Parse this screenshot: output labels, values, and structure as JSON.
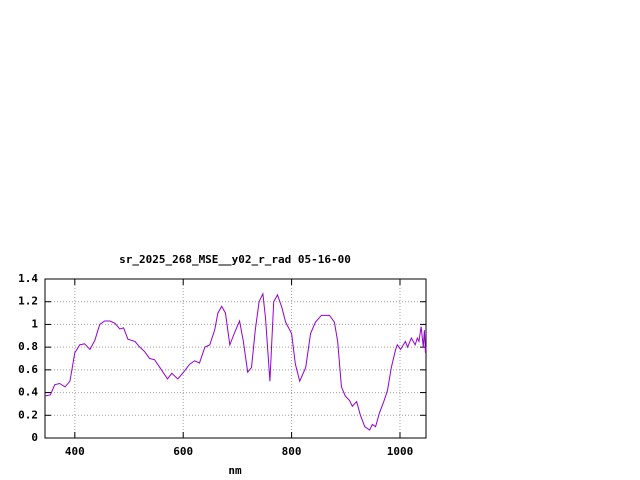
{
  "chart_data": {
    "type": "line",
    "title": "sr_2025_268_MSE__y02_r_rad 05-16-00",
    "x_label": "nm",
    "x": [
      345,
      355,
      363,
      372,
      382,
      391,
      400,
      409,
      418,
      428,
      437,
      446,
      455,
      465,
      474,
      483,
      490,
      498,
      511,
      520,
      529,
      538,
      547,
      557,
      571,
      579,
      590,
      599,
      612,
      621,
      630,
      640,
      649,
      658,
      664,
      671,
      678,
      686,
      695,
      704,
      711,
      719,
      726,
      733,
      740,
      747,
      752,
      760,
      767,
      774,
      782,
      789,
      800,
      807,
      815,
      826,
      835,
      844,
      855,
      870,
      879,
      885,
      892,
      899,
      907,
      912,
      920,
      927,
      935,
      944,
      949,
      955,
      962,
      970,
      977,
      984,
      992,
      995,
      1001,
      1010,
      1014,
      1021,
      1028,
      1032,
      1035,
      1039,
      1043,
      1045,
      1047,
      1048
    ],
    "series": [
      {
        "name": "sr_2025_268_MSE__y02_r_rad",
        "color": "#9400d3",
        "values": [
          0.37,
          0.38,
          0.47,
          0.48,
          0.45,
          0.5,
          0.75,
          0.82,
          0.83,
          0.78,
          0.86,
          1.0,
          1.03,
          1.03,
          1.01,
          0.96,
          0.97,
          0.87,
          0.85,
          0.8,
          0.76,
          0.7,
          0.69,
          0.62,
          0.52,
          0.57,
          0.52,
          0.57,
          0.65,
          0.68,
          0.66,
          0.8,
          0.82,
          0.95,
          1.1,
          1.16,
          1.1,
          0.82,
          0.93,
          1.03,
          0.85,
          0.58,
          0.62,
          0.95,
          1.2,
          1.27,
          1.05,
          0.5,
          1.2,
          1.26,
          1.15,
          1.02,
          0.92,
          0.65,
          0.5,
          0.62,
          0.92,
          1.02,
          1.08,
          1.08,
          1.02,
          0.85,
          0.45,
          0.37,
          0.33,
          0.28,
          0.32,
          0.2,
          0.1,
          0.07,
          0.12,
          0.1,
          0.22,
          0.32,
          0.42,
          0.62,
          0.78,
          0.82,
          0.78,
          0.85,
          0.8,
          0.88,
          0.82,
          0.88,
          0.85,
          0.98,
          0.8,
          0.95,
          0.75,
          0.8
        ]
      }
    ],
    "xlim": [
      345,
      1048
    ],
    "ylim": [
      0,
      1.4
    ],
    "xticks": [
      400,
      600,
      800,
      1000
    ],
    "yticks": [
      0,
      0.2,
      0.4,
      0.6,
      0.8,
      1,
      1.2,
      1.4
    ],
    "grid": true
  }
}
